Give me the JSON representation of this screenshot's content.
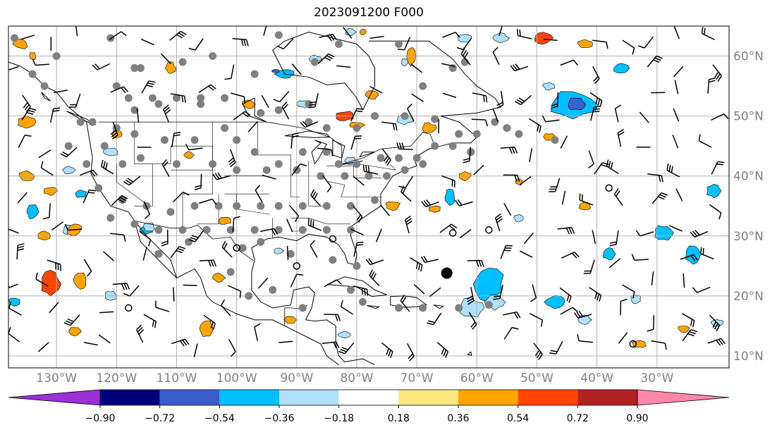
{
  "title": "2023091200 F000",
  "map": {
    "lon_range": [
      -138.0,
      -18.0
    ],
    "lat_range": [
      8.0,
      65.0
    ],
    "lat_ticks": [
      10,
      20,
      30,
      40,
      50,
      60
    ],
    "lat_labels": [
      "10°N",
      "20°N",
      "30°N",
      "40°N",
      "50°N",
      "60°N"
    ],
    "lon_ticks": [
      -130,
      -120,
      -110,
      -100,
      -90,
      -80,
      -70,
      -60,
      -50,
      -40,
      -30
    ],
    "lon_labels": [
      "130°W",
      "120°W",
      "110°W",
      "100°W",
      "90°W",
      "80°W",
      "70°W",
      "60°W",
      "50°W",
      "40°W",
      "30°W"
    ],
    "grid": true
  },
  "colorbar": {
    "ticks": [
      "−0.90",
      "−0.72",
      "−0.54",
      "−0.36",
      "−0.18",
      "0.18",
      "0.36",
      "0.54",
      "0.72",
      "0.90"
    ],
    "colors": [
      "#9b30d6",
      "#00007f",
      "#3a5fcd",
      "#00bfff",
      "#b0e0ff",
      "#ffffff",
      "#ffe680",
      "#ffa500",
      "#ff4500",
      "#b22222",
      "#ff88aa"
    ],
    "extend": "both"
  },
  "colors": {
    "station": "#808080",
    "barb": "#000000",
    "coast": "#000000",
    "grid": "#b0b0b0"
  },
  "features": {
    "large_marker": {
      "lon": -65,
      "lat": 23.8
    }
  }
}
